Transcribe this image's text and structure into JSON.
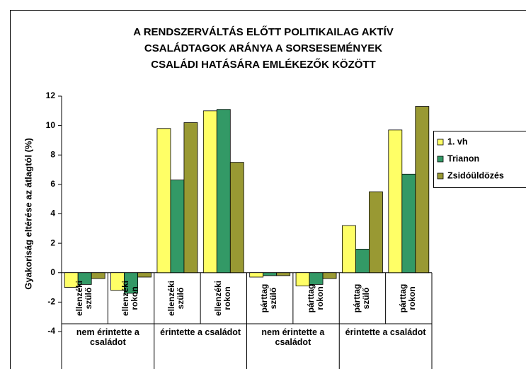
{
  "chart_data": {
    "type": "bar",
    "title": [
      "A RENDSZERVÁLTÁS ELŐTT POLITIKAILAG AKTÍV",
      "CSALÁDTAGOK ARÁNYA A SORSESEMÉNYEK",
      "CSALÁDI HATÁSÁRA EMLÉKEZŐK KÖZÖTT"
    ],
    "y_label": "Gyakoriság eltérése az átlagtól (%)",
    "categories": [
      "ellenzéki szülő",
      "ellenzéki rokon",
      "ellenzéki szülő",
      "ellenzéki rokon",
      "párttag szülő",
      "párttag rokon",
      "párttag szülő",
      "párttag rokon"
    ],
    "groups": [
      "nem érintette a családot",
      "érintette a családot",
      "nem érintette a családot",
      "érintette a családot"
    ],
    "series": [
      {
        "name": "1. vh",
        "color": "#ffff66",
        "values": [
          -1.0,
          -1.2,
          9.8,
          11.0,
          -0.3,
          -0.9,
          3.2,
          9.7
        ]
      },
      {
        "name": "Trianon",
        "color": "#339966",
        "values": [
          -0.8,
          -1.4,
          6.3,
          11.1,
          -0.2,
          -0.8,
          1.6,
          6.7
        ]
      },
      {
        "name": "Zsidóüldözés",
        "color": "#999933",
        "values": [
          -0.4,
          -0.3,
          10.2,
          7.5,
          -0.2,
          -0.4,
          5.5,
          11.3
        ]
      }
    ],
    "ylim": [
      -4,
      12
    ],
    "yticks": [
      -4,
      -2,
      0,
      2,
      4,
      6,
      8,
      10,
      12
    ],
    "legend": "right"
  }
}
